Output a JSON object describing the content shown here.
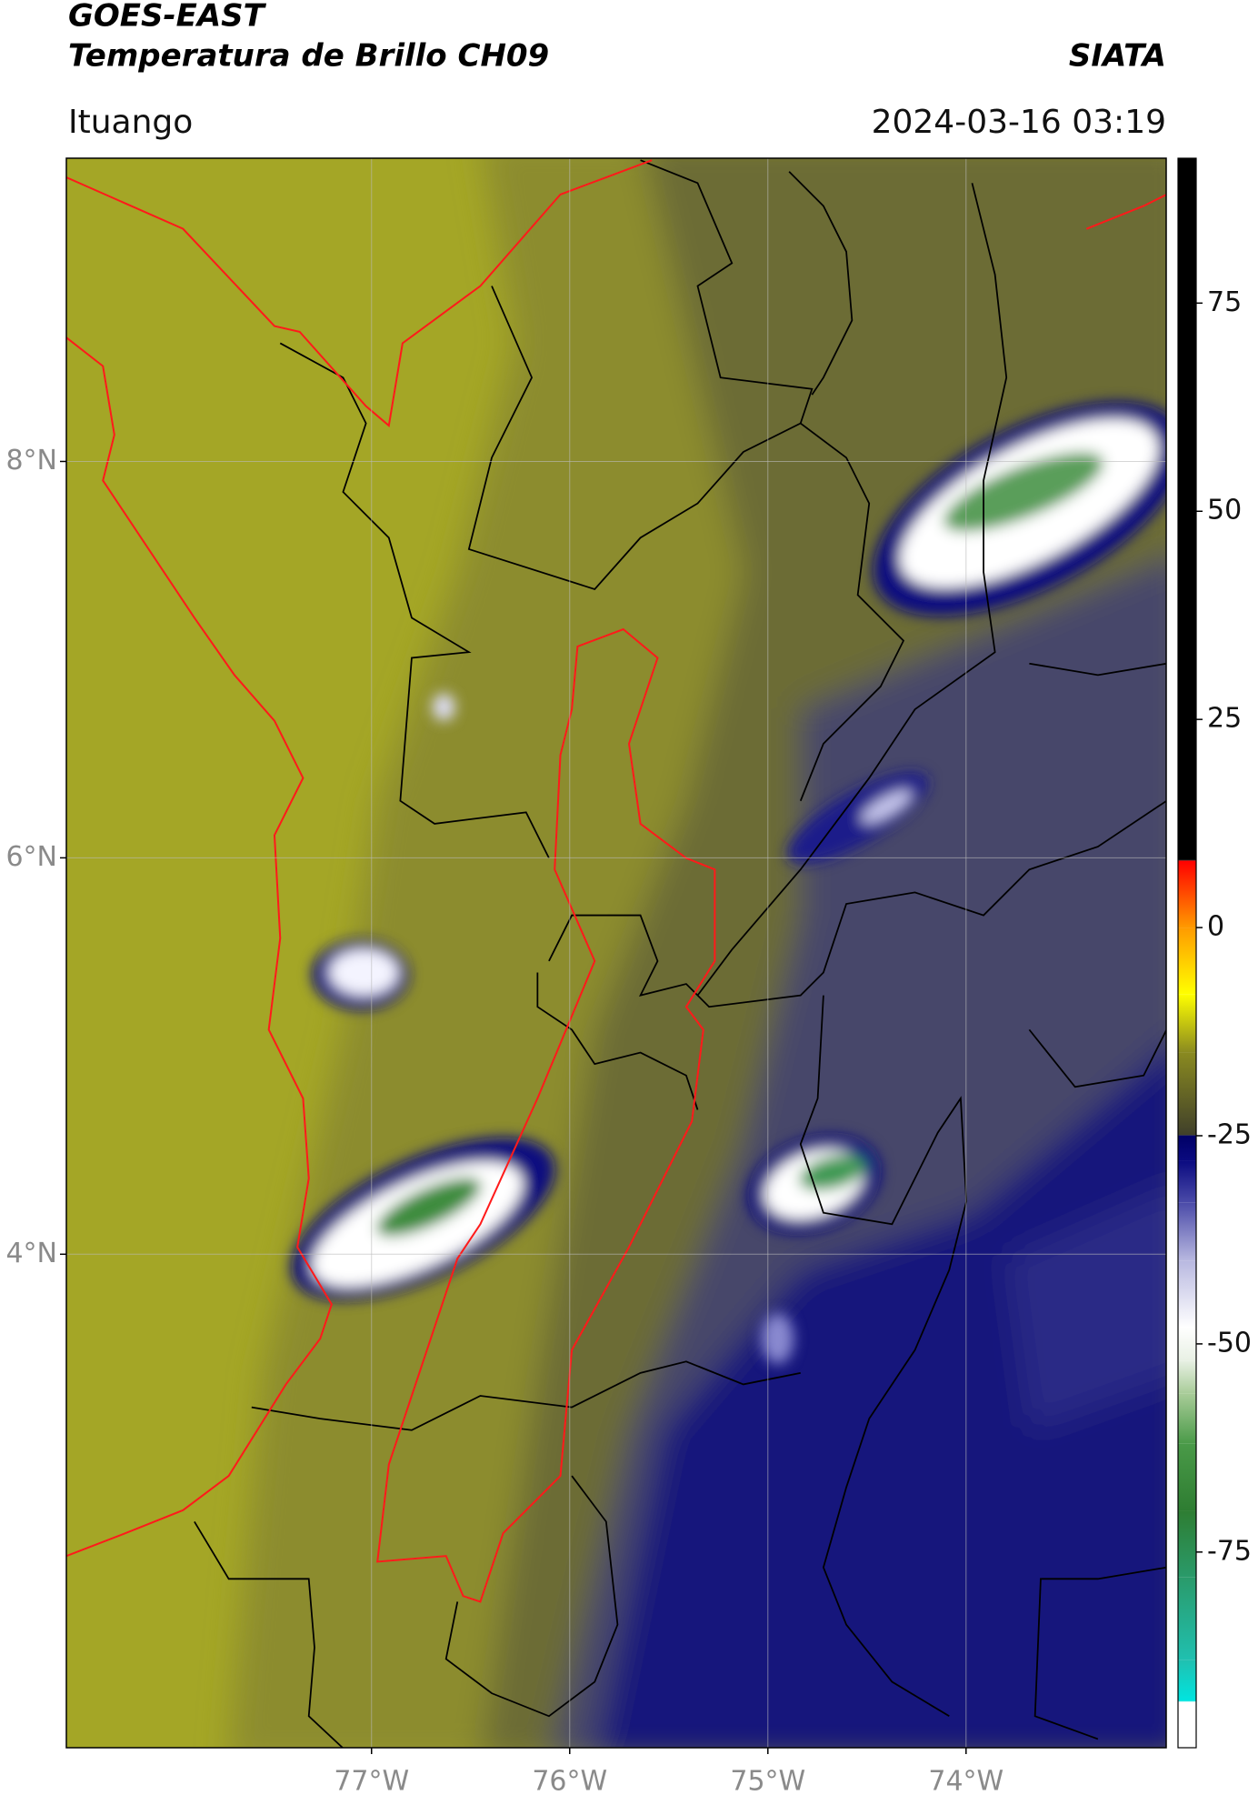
{
  "header": {
    "title": "GOES-EAST",
    "subtitle": "Temperatura de Brillo CH09",
    "agency": "SIATA",
    "location": "Ituango",
    "datetime": "2024-03-16 03:19"
  },
  "map": {
    "xlim": [
      -78.54,
      -72.99
    ],
    "ylim": [
      1.51,
      9.53
    ],
    "xticks": [
      {
        "value": -77,
        "label": "77°W"
      },
      {
        "value": -76,
        "label": "76°W"
      },
      {
        "value": -75,
        "label": "75°W"
      },
      {
        "value": -74,
        "label": "74°W"
      }
    ],
    "yticks": [
      {
        "value": 8,
        "label": "8°N"
      },
      {
        "value": 6,
        "label": "6°N"
      },
      {
        "value": 4,
        "label": "4°N"
      }
    ],
    "grid": true
  },
  "colorbar": {
    "lim": [
      -98.5,
      92.4
    ],
    "ticks": [
      75,
      50,
      25,
      0,
      -25,
      -50,
      -75
    ],
    "stops": [
      {
        "value": -98.5,
        "color": "#ffffff"
      },
      {
        "value": -93,
        "color": "#ffffff"
      },
      {
        "value": -92.9,
        "color": "#00e5e0"
      },
      {
        "value": -88,
        "color": "#20c0b0"
      },
      {
        "value": -78,
        "color": "#2a9a6a"
      },
      {
        "value": -70,
        "color": "#2e7d32"
      },
      {
        "value": -62,
        "color": "#4a9a48"
      },
      {
        "value": -56,
        "color": "#a8cc98"
      },
      {
        "value": -52,
        "color": "#e8f0e4"
      },
      {
        "value": -48,
        "color": "#ffffff"
      },
      {
        "value": -40,
        "color": "#b8b8e0"
      },
      {
        "value": -33,
        "color": "#4a4aa8"
      },
      {
        "value": -28,
        "color": "#0a0a80"
      },
      {
        "value": -25,
        "color": "#000066"
      },
      {
        "value": -24.9,
        "color": "#40402a"
      },
      {
        "value": -15,
        "color": "#8a8a20"
      },
      {
        "value": -8,
        "color": "#ffff00"
      },
      {
        "value": 0,
        "color": "#ff9a00"
      },
      {
        "value": 8,
        "color": "#ff0000"
      },
      {
        "value": 8.1,
        "color": "#000000"
      },
      {
        "value": 92.4,
        "color": "#000000"
      }
    ]
  }
}
